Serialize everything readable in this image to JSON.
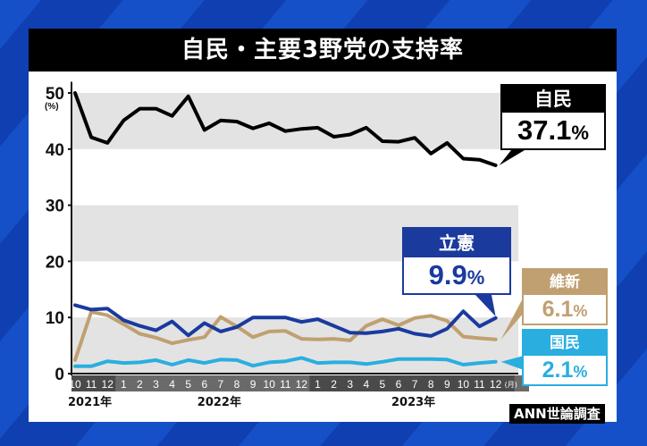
{
  "title": "自民・主要3野党の支持率",
  "source": "ANN世論調査",
  "colors": {
    "ldp": "#000000",
    "cdp": "#1a3a9e",
    "ishin": "#c0a070",
    "dpfp": "#2aaee0",
    "band": "#e3e3e3"
  },
  "callouts": {
    "ldp": {
      "party": "自民",
      "value": "37.1",
      "unit": "%"
    },
    "cdp": {
      "party": "立憲",
      "value": "9.9",
      "unit": "%"
    },
    "ishin": {
      "party": "維新",
      "value": "6.1",
      "unit": "%"
    },
    "dpfp": {
      "party": "国民",
      "value": "2.1",
      "unit": "%"
    }
  },
  "chart_data": {
    "type": "line",
    "title": "自民・主要3野党の支持率",
    "xlabel": "",
    "ylabel": "(%)",
    "ylim": [
      0,
      50
    ],
    "yticks": [
      0,
      10,
      20,
      30,
      40,
      50
    ],
    "grid": "alternating horizontal bands",
    "legend_position": "right (callout labels)",
    "categories": [
      "2021-10",
      "2021-11",
      "2021-12",
      "2022-1",
      "2022-2",
      "2022-3",
      "2022-4",
      "2022-5",
      "2022-6",
      "2022-7",
      "2022-8",
      "2022-9",
      "2022-10",
      "2022-11",
      "2022-12",
      "2023-1",
      "2023-2",
      "2023-3",
      "2023-4",
      "2023-5",
      "2023-6",
      "2023-7",
      "2023-8",
      "2023-9",
      "2023-10",
      "2023-11",
      "2023-12"
    ],
    "month_labels": [
      "10",
      "11",
      "12",
      "1",
      "2",
      "3",
      "4",
      "5",
      "6",
      "7",
      "8",
      "9",
      "10",
      "11",
      "12",
      "1",
      "2",
      "3",
      "4",
      "5",
      "6",
      "7",
      "8",
      "9",
      "10",
      "11",
      "12"
    ],
    "month_unit": "(月)",
    "year_labels": [
      {
        "label": "2021年",
        "index": 0
      },
      {
        "label": "2022年",
        "index": 8
      },
      {
        "label": "2023年",
        "index": 20
      }
    ],
    "series": [
      {
        "name": "自民",
        "color": "#000000",
        "values": [
          50.0,
          42.1,
          41.1,
          45.1,
          47.2,
          47.2,
          45.9,
          49.4,
          43.4,
          45.1,
          44.9,
          43.7,
          44.6,
          43.2,
          43.6,
          43.8,
          42.2,
          42.6,
          43.8,
          41.4,
          41.3,
          42.0,
          39.2,
          41.1,
          38.3,
          38.1,
          37.1
        ]
      },
      {
        "name": "立憲",
        "color": "#1a3a9e",
        "values": [
          12.2,
          11.4,
          11.6,
          9.5,
          8.5,
          7.7,
          9.3,
          6.8,
          9.0,
          7.5,
          8.3,
          10.0,
          10.0,
          10.0,
          9.2,
          9.7,
          8.5,
          7.3,
          7.2,
          7.5,
          8.0,
          7.1,
          6.7,
          8.0,
          11.1,
          8.4,
          9.9
        ]
      },
      {
        "name": "維新",
        "color": "#c0a070",
        "values": [
          2.4,
          11.0,
          10.4,
          8.8,
          7.1,
          6.4,
          5.4,
          6.0,
          6.5,
          10.1,
          8.4,
          6.5,
          7.5,
          7.6,
          6.2,
          6.1,
          6.2,
          5.9,
          8.5,
          9.7,
          8.6,
          9.9,
          10.3,
          9.4,
          6.6,
          6.3,
          6.1
        ]
      },
      {
        "name": "国民",
        "color": "#2aaee0",
        "values": [
          1.3,
          1.3,
          2.2,
          1.9,
          2.0,
          2.4,
          1.6,
          2.4,
          1.9,
          2.5,
          2.4,
          1.4,
          2.0,
          2.2,
          2.8,
          1.9,
          2.0,
          2.0,
          1.7,
          2.1,
          2.6,
          2.6,
          2.6,
          2.5,
          1.6,
          1.9,
          2.1
        ]
      }
    ]
  }
}
